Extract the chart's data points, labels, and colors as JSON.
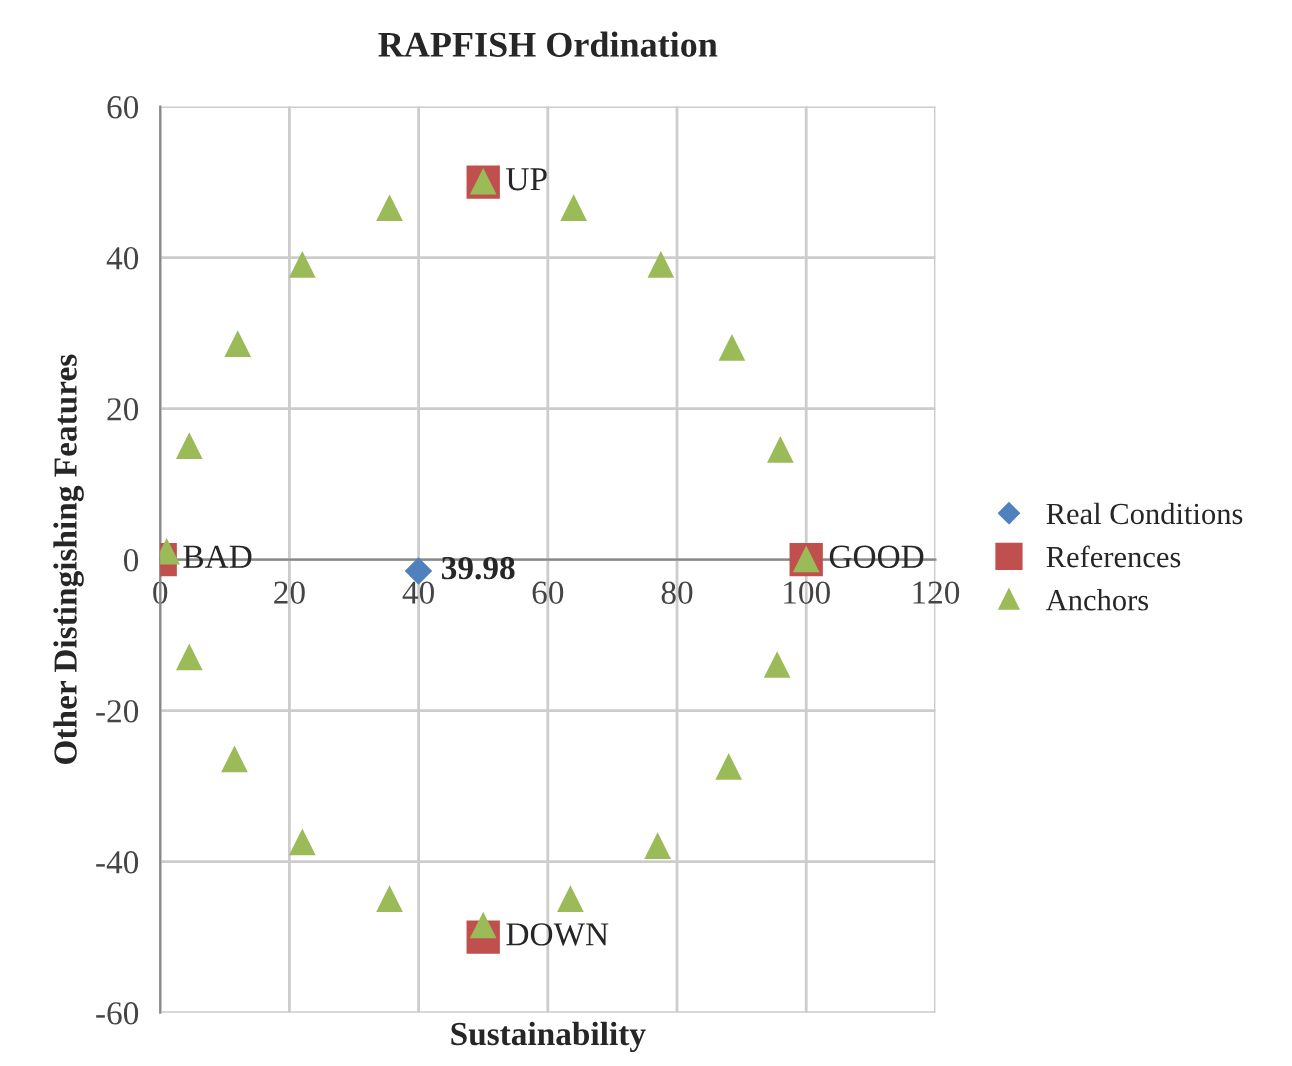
{
  "chart_data": {
    "type": "scatter",
    "title": "RAPFISH Ordination",
    "xlabel": "Sustainability",
    "ylabel": "Other Distingishing Features",
    "series": [
      {
        "name": "Real Conditions",
        "color": "#4f81bd",
        "marker": "diamond",
        "x": [
          39.98
        ],
        "values": [
          -1.5
        ]
      },
      {
        "name": "References",
        "color": "#c0504d",
        "marker": "square",
        "x": [
          0,
          100,
          50,
          50
        ],
        "values": [
          0,
          0,
          50,
          -50
        ]
      },
      {
        "name": "Anchors",
        "color": "#9bbb59",
        "marker": "triangle",
        "x": [
          1,
          4.5,
          12,
          22,
          35.5,
          50,
          64,
          77.5,
          88.5,
          96,
          100,
          4.5,
          11.5,
          22,
          35.5,
          50,
          63.5,
          77,
          88,
          95.5
        ],
        "values": [
          1,
          15,
          28.5,
          39,
          46.5,
          50,
          46.5,
          39,
          28,
          14.5,
          0,
          -13,
          -26.5,
          -37.5,
          -45,
          -48.5,
          -45,
          -38,
          -27.5,
          -14
        ]
      }
    ],
    "annotations": [
      {
        "text": "39.98",
        "x": 39.98,
        "y": -1.5
      },
      {
        "text": "BAD",
        "x": 0,
        "y": 0
      },
      {
        "text": "GOOD",
        "x": 100,
        "y": 0
      },
      {
        "text": "UP",
        "x": 50,
        "y": 50
      },
      {
        "text": "DOWN",
        "x": 50,
        "y": -50
      }
    ],
    "xlim": [
      0,
      120
    ],
    "xticks": [
      0,
      20,
      40,
      60,
      80,
      100,
      120
    ],
    "ylim": [
      -60,
      60
    ],
    "yticks": [
      -60,
      -40,
      -20,
      0,
      20,
      40,
      60
    ],
    "grid": true,
    "legend": "right"
  }
}
